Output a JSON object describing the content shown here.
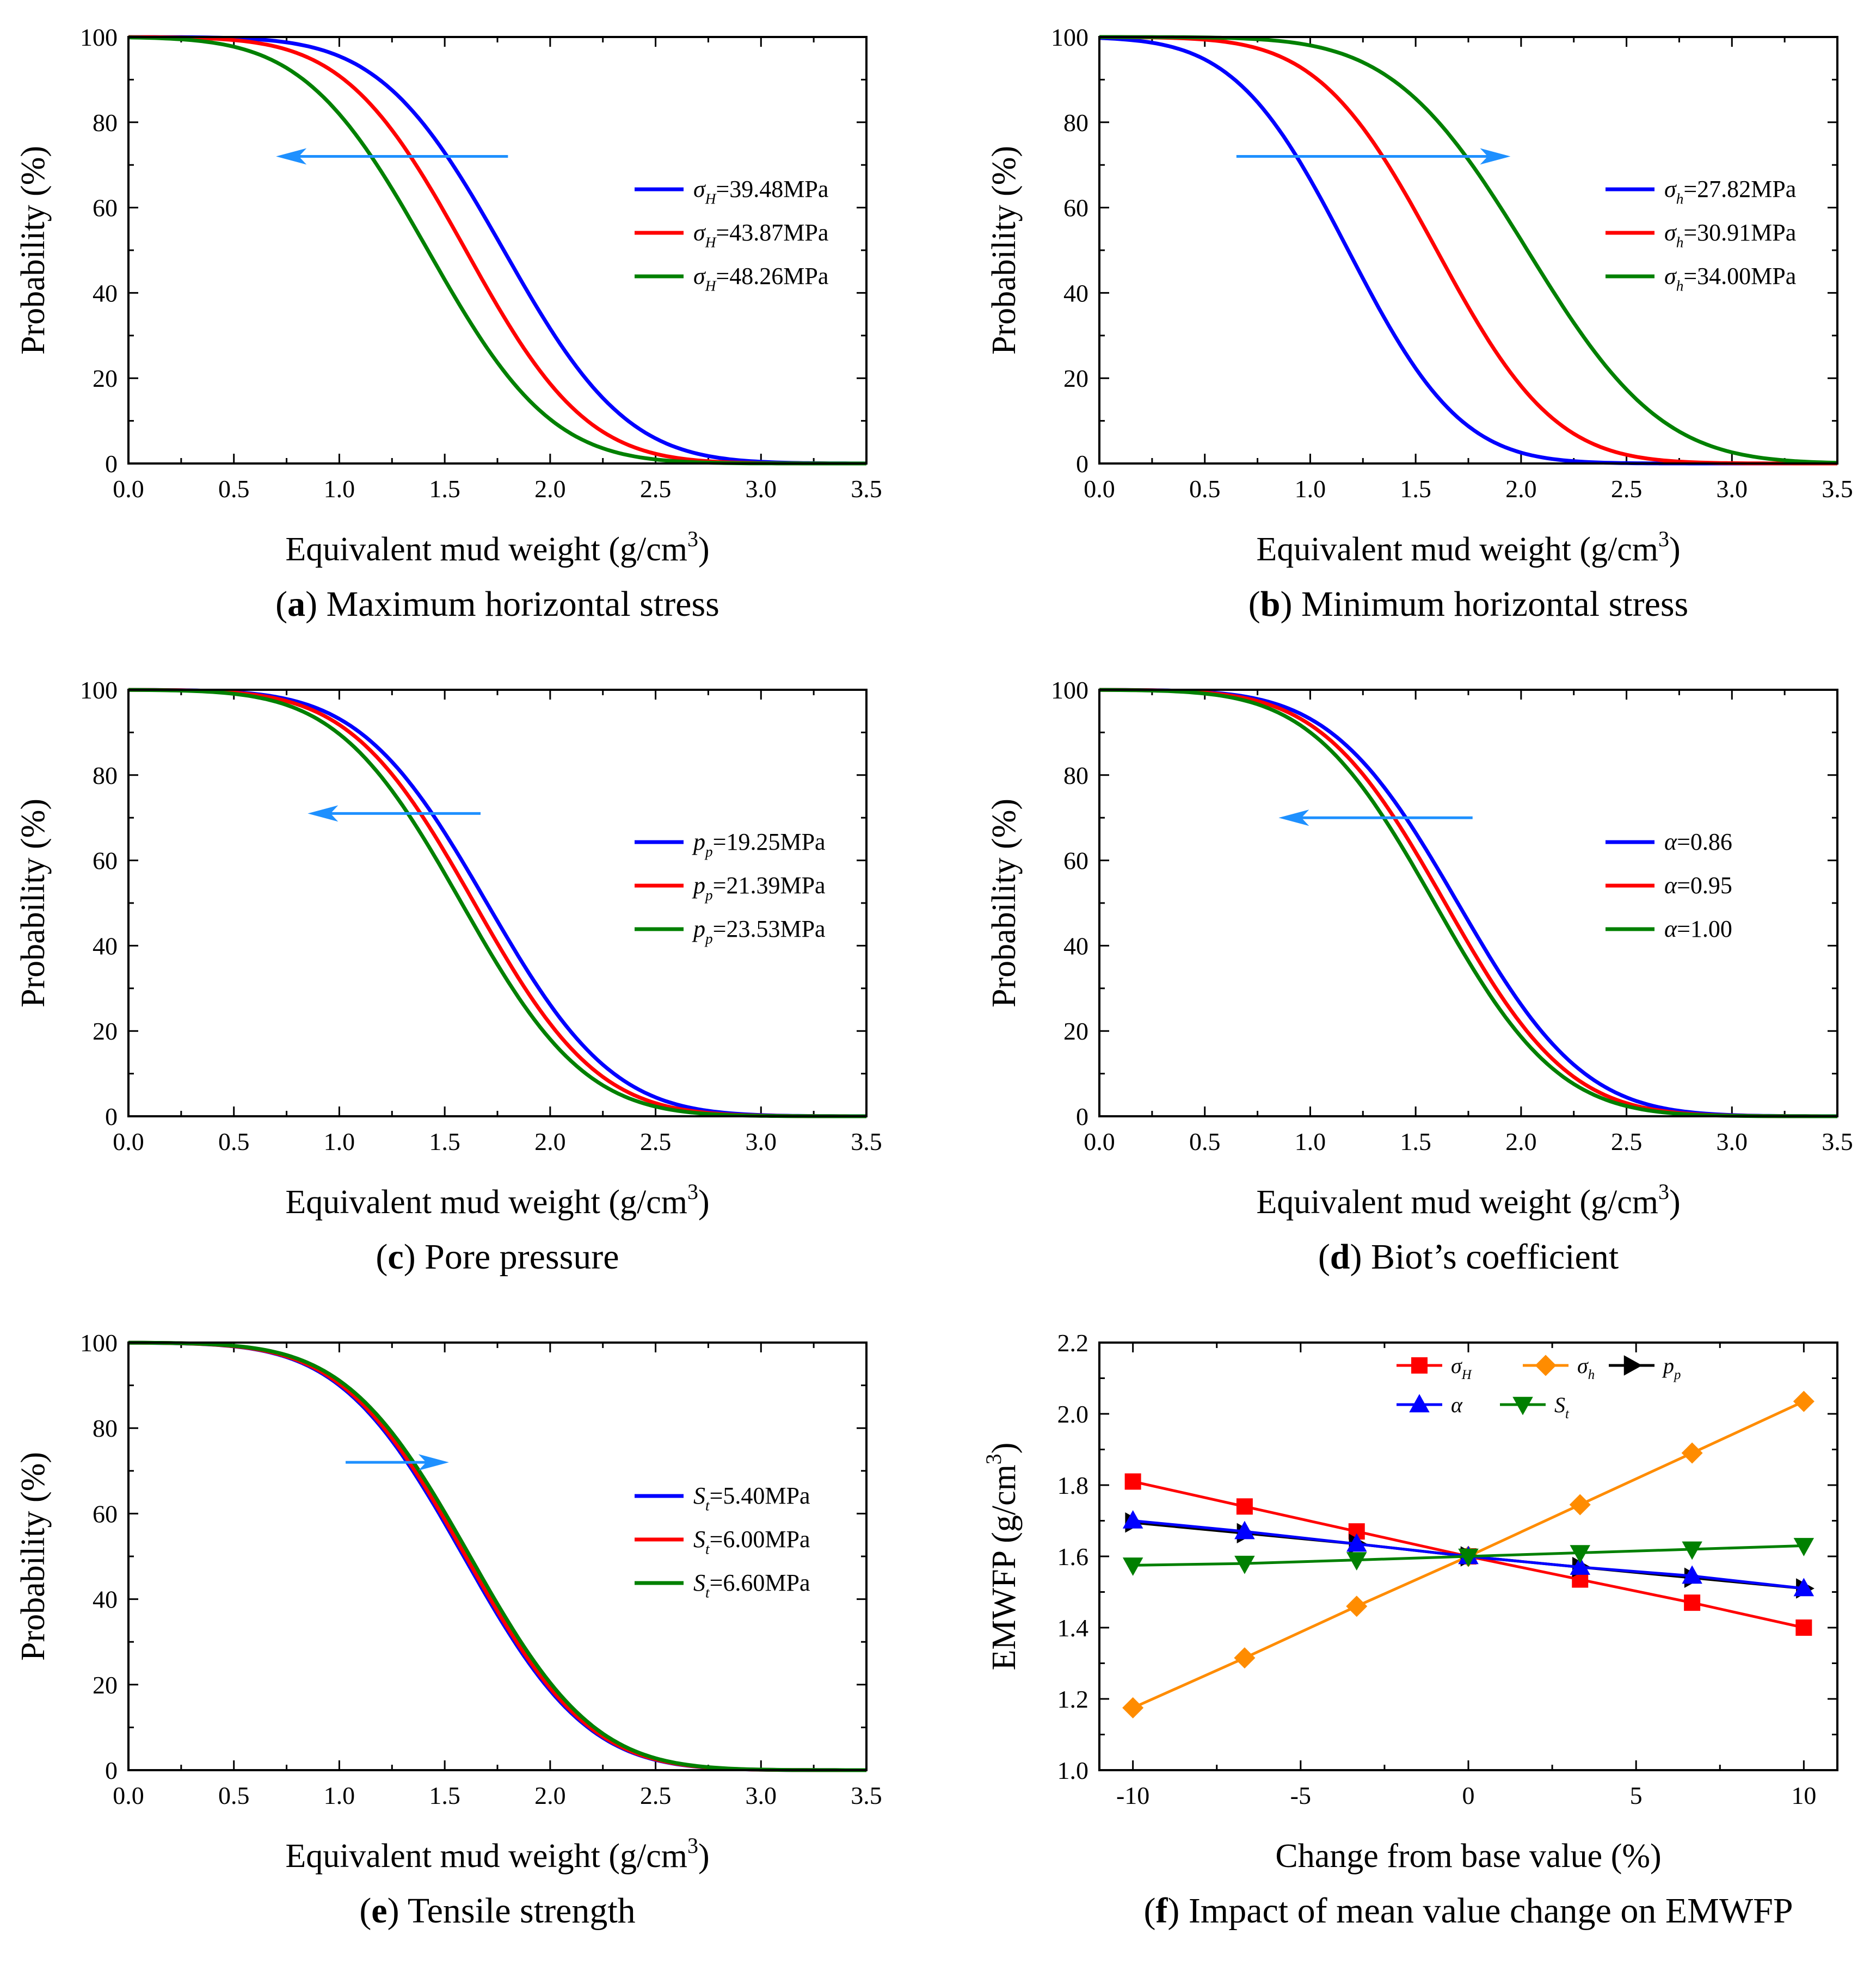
{
  "figure": {
    "panels": [
      {
        "id": "a",
        "letter": "a",
        "caption": "Maximum horizontal stress",
        "caption_text": "Maximum horizontal stress"
      },
      {
        "id": "b",
        "letter": "b",
        "caption": "Minimum horizontal stress",
        "caption_text": "Minimum horizontal stress"
      },
      {
        "id": "c",
        "letter": "c",
        "caption": "Pore pressure",
        "caption_text": "Pore pressure"
      },
      {
        "id": "d",
        "letter": "d",
        "caption": "Biot’s coefficient",
        "caption_text": "Biot’s coefficient"
      },
      {
        "id": "e",
        "letter": "e",
        "caption": "Tensile strength",
        "caption_text": "Tensile strength"
      },
      {
        "id": "f",
        "letter": "f",
        "caption": "Impact of mean value change on EMWFP",
        "caption_text": "Impact of mean value change on EMWFP"
      }
    ]
  },
  "colors": {
    "blue": "#0000ff",
    "red": "#ff0000",
    "green": "#008000",
    "orange": "#ff8c00",
    "black": "#000000",
    "arrow": "#1e90ff"
  },
  "chart_data": [
    {
      "id": "a",
      "type": "line",
      "xlabel": "Equivalent mud weight (g/cm",
      "xlabel_sup": "3",
      "xlabel_end": ")",
      "ylabel": "Probability (%)",
      "xlim": [
        0,
        3.5
      ],
      "ylim": [
        0,
        100
      ],
      "xticks": [
        "0.0",
        "0.5",
        "1.0",
        "1.5",
        "2.0",
        "2.5",
        "3.0",
        "3.5"
      ],
      "yticks": [
        "0",
        "20",
        "40",
        "60",
        "80",
        "100"
      ],
      "arrow": {
        "from": [
          1.8,
          72
        ],
        "to": [
          0.7,
          72
        ],
        "direction": "left"
      },
      "curve_type": "sigmoid",
      "series": [
        {
          "sym": "σ",
          "sub": "H",
          "rest": "=39.48MPa",
          "label": "σH=39.48MPa",
          "color": "blue",
          "mean": 1.78,
          "sd": 0.46,
          "top": 100
        },
        {
          "sym": "σ",
          "sub": "H",
          "rest": "=43.87MPa",
          "label": "σH=43.87MPa",
          "color": "red",
          "mean": 1.6,
          "sd": 0.45,
          "top": 100
        },
        {
          "sym": "σ",
          "sub": "H",
          "rest": "=48.26MPa",
          "label": "σH=48.26MPa",
          "color": "green",
          "mean": 1.42,
          "sd": 0.46,
          "top": 100
        }
      ]
    },
    {
      "id": "b",
      "type": "line",
      "xlabel": "Equivalent mud weight (g/cm",
      "xlabel_sup": "3",
      "xlabel_end": ")",
      "ylabel": "Probability (%)",
      "xlim": [
        0,
        3.5
      ],
      "ylim": [
        0,
        100
      ],
      "xticks": [
        "0.0",
        "0.5",
        "1.0",
        "1.5",
        "2.0",
        "2.5",
        "3.0",
        "3.5"
      ],
      "yticks": [
        "0",
        "20",
        "40",
        "60",
        "80",
        "100"
      ],
      "arrow": {
        "from": [
          0.65,
          72
        ],
        "to": [
          1.95,
          72
        ],
        "direction": "right"
      },
      "curve_type": "sigmoid",
      "series": [
        {
          "sym": "σ",
          "sub": "h",
          "rest": "=27.82MPa",
          "label": "σh=27.82MPa",
          "color": "blue",
          "mean": 1.18,
          "sd": 0.42,
          "top": 100
        },
        {
          "sym": "σ",
          "sub": "h",
          "rest": "=30.91MPa",
          "label": "σh=30.91MPa",
          "color": "red",
          "mean": 1.6,
          "sd": 0.44,
          "top": 100
        },
        {
          "sym": "σ",
          "sub": "h",
          "rest": "=34.00MPa",
          "label": "σh=34.00MPa",
          "color": "green",
          "mean": 2.03,
          "sd": 0.5,
          "top": 100
        }
      ]
    },
    {
      "id": "c",
      "type": "line",
      "xlabel": "Equivalent mud weight (g/cm",
      "xlabel_sup": "3",
      "xlabel_end": ")",
      "ylabel": "Probability (%)",
      "xlim": [
        0,
        3.5
      ],
      "ylim": [
        0,
        100
      ],
      "xticks": [
        "0.0",
        "0.5",
        "1.0",
        "1.5",
        "2.0",
        "2.5",
        "3.0",
        "3.5"
      ],
      "yticks": [
        "0",
        "20",
        "40",
        "60",
        "80",
        "100"
      ],
      "arrow": {
        "from": [
          1.67,
          71
        ],
        "to": [
          0.85,
          71
        ],
        "direction": "left"
      },
      "curve_type": "sigmoid",
      "series": [
        {
          "sym": "p",
          "sub": "p",
          "rest": "=19.25MPa",
          "label": "pp=19.25MPa",
          "color": "blue",
          "mean": 1.7,
          "sd": 0.47,
          "top": 100
        },
        {
          "sym": "p",
          "sub": "p",
          "rest": "=21.39MPa",
          "label": "pp=21.39MPa",
          "color": "red",
          "mean": 1.64,
          "sd": 0.46,
          "top": 100
        },
        {
          "sym": "p",
          "sub": "p",
          "rest": "=23.53MPa",
          "label": "pp=23.53MPa",
          "color": "green",
          "mean": 1.58,
          "sd": 0.46,
          "top": 100
        }
      ]
    },
    {
      "id": "d",
      "type": "line",
      "xlabel": "Equivalent mud weight (g/cm",
      "xlabel_sup": "3",
      "xlabel_end": ")",
      "ylabel": "Probability (%)",
      "xlim": [
        0,
        3.5
      ],
      "ylim": [
        0,
        100
      ],
      "xticks": [
        "0.0",
        "0.5",
        "1.0",
        "1.5",
        "2.0",
        "2.5",
        "3.0",
        "3.5"
      ],
      "yticks": [
        "0",
        "20",
        "40",
        "60",
        "80",
        "100"
      ],
      "arrow": {
        "from": [
          1.77,
          70
        ],
        "to": [
          0.85,
          70
        ],
        "direction": "left"
      },
      "curve_type": "sigmoid",
      "series": [
        {
          "sym": "α",
          "sub": "",
          "rest": "=0.86",
          "label": "α=0.86",
          "color": "blue",
          "mean": 1.7,
          "sd": 0.47,
          "top": 100
        },
        {
          "sym": "α",
          "sub": "",
          "rest": "=0.95",
          "label": "α=0.95",
          "color": "red",
          "mean": 1.64,
          "sd": 0.46,
          "top": 100
        },
        {
          "sym": "α",
          "sub": "",
          "rest": "=1.00",
          "label": "α=1.00",
          "color": "green",
          "mean": 1.59,
          "sd": 0.46,
          "top": 100
        }
      ]
    },
    {
      "id": "e",
      "type": "line",
      "xlabel": "Equivalent mud weight (g/cm",
      "xlabel_sup": "3",
      "xlabel_end": ")",
      "ylabel": "Probability (%)",
      "xlim": [
        0,
        3.5
      ],
      "ylim": [
        0,
        100
      ],
      "xticks": [
        "0.0",
        "0.5",
        "1.0",
        "1.5",
        "2.0",
        "2.5",
        "3.0",
        "3.5"
      ],
      "yticks": [
        "0",
        "20",
        "40",
        "60",
        "80",
        "100"
      ],
      "arrow": {
        "from": [
          1.03,
          72
        ],
        "to": [
          1.52,
          72
        ],
        "direction": "right"
      },
      "curve_type": "sigmoid",
      "series": [
        {
          "sym": "S",
          "sub": "t",
          "rest": "=5.40MPa",
          "label": "St=5.40MPa",
          "color": "blue",
          "mean": 1.59,
          "sd": 0.46,
          "top": 100
        },
        {
          "sym": "S",
          "sub": "t",
          "rest": "=6.00MPa",
          "label": "St=6.00MPa",
          "color": "red",
          "mean": 1.6,
          "sd": 0.46,
          "top": 100
        },
        {
          "sym": "S",
          "sub": "t",
          "rest": "=6.60MPa",
          "label": "St=6.60MPa",
          "color": "green",
          "mean": 1.62,
          "sd": 0.46,
          "top": 100
        }
      ]
    },
    {
      "id": "f",
      "type": "line",
      "xlabel": "Change from base value (%)",
      "ylabel": "EMWFP (g/cm",
      "ylabel_sup": "3",
      "ylabel_end": ")",
      "xlim": [
        -11,
        11
      ],
      "ylim": [
        1.0,
        2.2
      ],
      "xticks": [
        "-10",
        "-5",
        "0",
        "5",
        "10"
      ],
      "xtick_values": [
        -10,
        -5,
        0,
        5,
        10
      ],
      "yticks": [
        "1.0",
        "1.2",
        "1.4",
        "1.6",
        "1.8",
        "2.0",
        "2.2"
      ],
      "x": [
        -10,
        -6.67,
        -3.33,
        0,
        3.33,
        6.67,
        10
      ],
      "series": [
        {
          "sym": "σ",
          "sub": "H",
          "label": "σH",
          "color": "red",
          "marker": "square",
          "values": [
            1.81,
            1.74,
            1.67,
            1.6,
            1.535,
            1.47,
            1.4
          ]
        },
        {
          "sym": "σ",
          "sub": "h",
          "label": "σh",
          "color": "orange",
          "marker": "diamond",
          "values": [
            1.175,
            1.315,
            1.46,
            1.6,
            1.745,
            1.89,
            2.035
          ]
        },
        {
          "sym": "p",
          "sub": "p",
          "label": "pp",
          "color": "black",
          "marker": "tri-right",
          "values": [
            1.695,
            1.665,
            1.635,
            1.6,
            1.57,
            1.54,
            1.51
          ]
        },
        {
          "sym": "α",
          "sub": "",
          "label": "α",
          "color": "blue",
          "marker": "tri-up",
          "values": [
            1.7,
            1.67,
            1.635,
            1.6,
            1.57,
            1.545,
            1.51
          ]
        },
        {
          "sym": "S",
          "sub": "t",
          "label": "St",
          "color": "green",
          "marker": "tri-down",
          "values": [
            1.575,
            1.58,
            1.59,
            1.6,
            1.61,
            1.62,
            1.63
          ]
        }
      ]
    }
  ]
}
